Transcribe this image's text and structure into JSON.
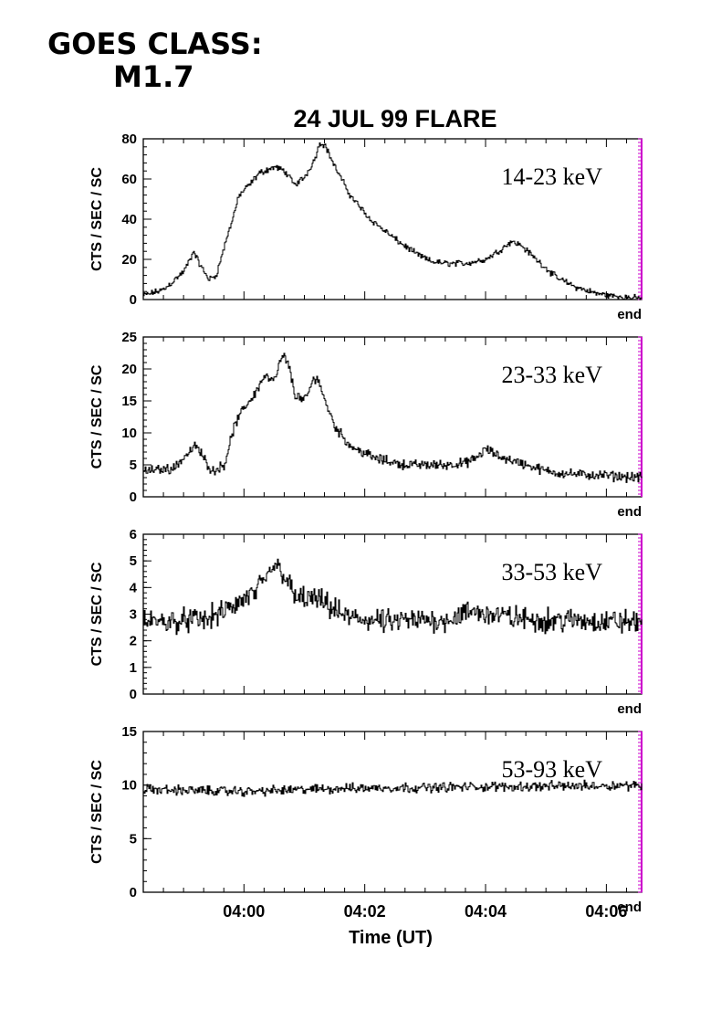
{
  "header": {
    "goes_line1": "GOES CLASS:",
    "goes_line2": "M1.7"
  },
  "colors": {
    "axis": "#000000",
    "trace": "#000000",
    "end_marker": "#cc00cc"
  },
  "chart_data": {
    "type": "line",
    "title": "24 JUL 99 FLARE",
    "xlabel": "Time (UT)",
    "x_unit": "minutes after 03:58:20 UT",
    "xlim": [
      0,
      495
    ],
    "xticks": [
      {
        "value": 100,
        "label": "04:00"
      },
      {
        "value": 220,
        "label": "04:02"
      },
      {
        "value": 340,
        "label": "04:04"
      },
      {
        "value": 460,
        "label": "04:06"
      }
    ],
    "end_label": "end",
    "panels": [
      {
        "band": "14-23 keV",
        "ylabel": "CTS / SEC / SC",
        "ylim": [
          0,
          80
        ],
        "yticks": [
          0,
          20,
          40,
          60,
          80
        ],
        "noise": 1.2,
        "profile": [
          [
            0,
            2
          ],
          [
            20,
            5
          ],
          [
            40,
            14
          ],
          [
            50,
            24
          ],
          [
            55,
            18
          ],
          [
            65,
            10
          ],
          [
            72,
            12
          ],
          [
            80,
            26
          ],
          [
            95,
            52
          ],
          [
            105,
            57
          ],
          [
            115,
            63
          ],
          [
            130,
            66
          ],
          [
            140,
            64
          ],
          [
            150,
            57
          ],
          [
            160,
            61
          ],
          [
            170,
            70
          ],
          [
            175,
            78
          ],
          [
            180,
            77
          ],
          [
            190,
            66
          ],
          [
            205,
            52
          ],
          [
            225,
            40
          ],
          [
            250,
            30
          ],
          [
            270,
            23
          ],
          [
            285,
            19
          ],
          [
            300,
            18
          ],
          [
            320,
            18
          ],
          [
            340,
            20
          ],
          [
            355,
            25
          ],
          [
            365,
            29
          ],
          [
            375,
            27
          ],
          [
            390,
            20
          ],
          [
            410,
            11
          ],
          [
            430,
            6
          ],
          [
            450,
            3
          ],
          [
            470,
            1.5
          ],
          [
            495,
            0.5
          ]
        ]
      },
      {
        "band": "23-33 keV",
        "ylabel": "CTS / SEC / SC",
        "ylim": [
          0,
          25
        ],
        "yticks": [
          0,
          5,
          10,
          15,
          20,
          25
        ],
        "noise": 0.6,
        "profile": [
          [
            0,
            4
          ],
          [
            30,
            4.5
          ],
          [
            45,
            7
          ],
          [
            52,
            8
          ],
          [
            60,
            6
          ],
          [
            68,
            4
          ],
          [
            80,
            5
          ],
          [
            90,
            11
          ],
          [
            100,
            14
          ],
          [
            110,
            16
          ],
          [
            120,
            19
          ],
          [
            130,
            18
          ],
          [
            135,
            21
          ],
          [
            140,
            22
          ],
          [
            145,
            20
          ],
          [
            150,
            16
          ],
          [
            160,
            15
          ],
          [
            168,
            18
          ],
          [
            172,
            19
          ],
          [
            178,
            16
          ],
          [
            190,
            11
          ],
          [
            205,
            8
          ],
          [
            230,
            6
          ],
          [
            260,
            5
          ],
          [
            300,
            5
          ],
          [
            320,
            5.3
          ],
          [
            330,
            6
          ],
          [
            340,
            7.5
          ],
          [
            350,
            6.5
          ],
          [
            360,
            6
          ],
          [
            380,
            5
          ],
          [
            400,
            4
          ],
          [
            430,
            3.5
          ],
          [
            460,
            3.3
          ],
          [
            495,
            3
          ]
        ]
      },
      {
        "band": "33-53 keV",
        "ylabel": "CTS / SEC / SC",
        "ylim": [
          0,
          6
        ],
        "yticks": [
          0,
          1,
          2,
          3,
          4,
          5,
          6
        ],
        "noise": 0.35,
        "profile": [
          [
            0,
            2.7
          ],
          [
            60,
            2.8
          ],
          [
            75,
            3
          ],
          [
            90,
            3.3
          ],
          [
            110,
            3.8
          ],
          [
            120,
            4.2
          ],
          [
            130,
            4.9
          ],
          [
            140,
            4.5
          ],
          [
            150,
            3.6
          ],
          [
            165,
            3.6
          ],
          [
            180,
            3.4
          ],
          [
            200,
            2.9
          ],
          [
            240,
            2.7
          ],
          [
            300,
            2.8
          ],
          [
            330,
            3.1
          ],
          [
            345,
            3.0
          ],
          [
            380,
            2.8
          ],
          [
            495,
            2.7
          ]
        ]
      },
      {
        "band": "53-93 keV",
        "ylabel": "CTS / SEC / SC",
        "ylim": [
          0,
          15
        ],
        "yticks": [
          0,
          5,
          10,
          15
        ],
        "noise": 0.35,
        "profile": [
          [
            0,
            9.6
          ],
          [
            100,
            9.4
          ],
          [
            200,
            9.7
          ],
          [
            300,
            9.8
          ],
          [
            400,
            9.9
          ],
          [
            495,
            10
          ]
        ]
      }
    ]
  }
}
